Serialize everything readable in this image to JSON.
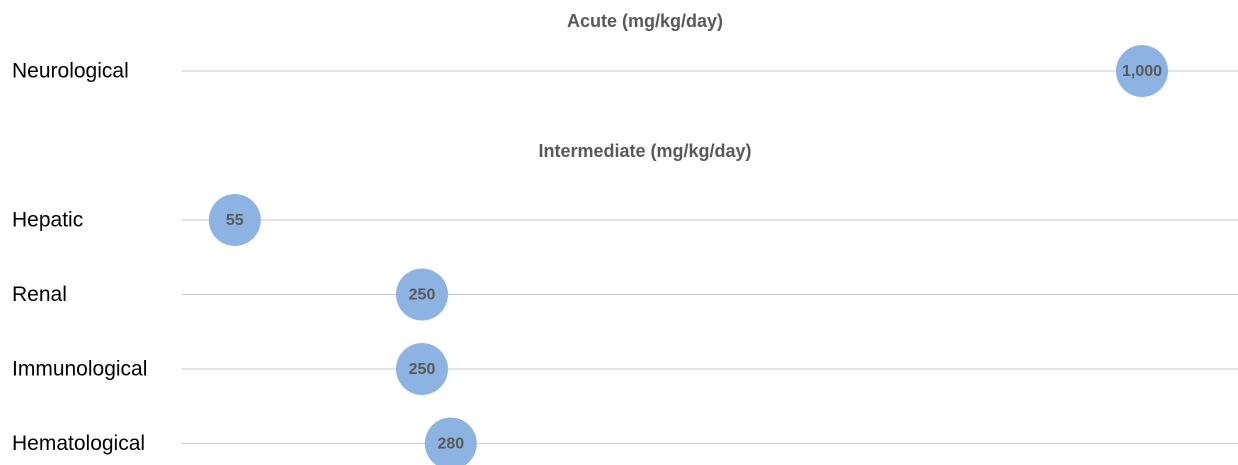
{
  "chart_data": [
    {
      "type": "dot",
      "title": "Acute (mg/kg/day)",
      "categories": [
        "Neurological"
      ],
      "values": [
        1000
      ],
      "value_labels": [
        "1,000"
      ],
      "color": "#8db3e2",
      "xlim": [
        0,
        1100
      ]
    },
    {
      "type": "dot",
      "title": "Intermediate (mg/kg/day)",
      "categories": [
        "Hepatic",
        "Renal",
        "Immunological",
        "Hematological"
      ],
      "values": [
        55,
        250,
        250,
        280
      ],
      "value_labels": [
        "55",
        "250",
        "250",
        "280"
      ],
      "color": "#8db3e2",
      "xlim": [
        0,
        1100
      ]
    }
  ]
}
